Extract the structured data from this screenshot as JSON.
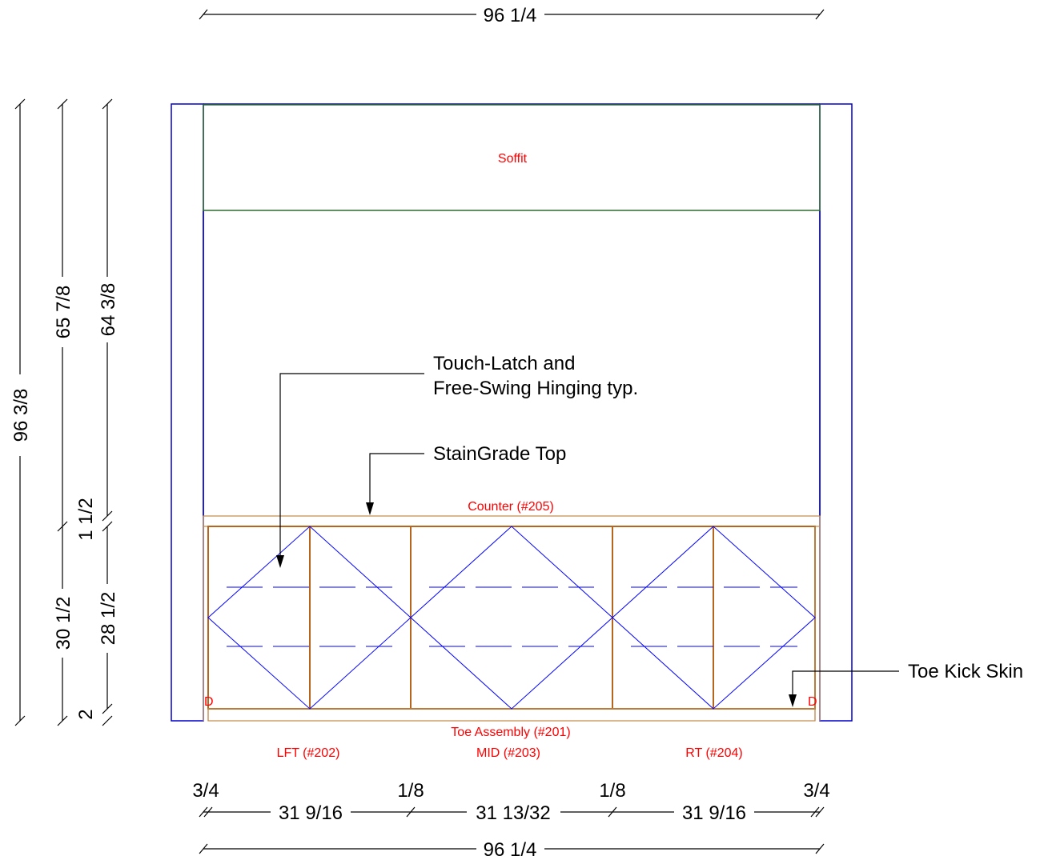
{
  "dimensions": {
    "top_overall": "96 1/4",
    "bottom_overall": "96 1/4",
    "left_overall": "96 3/8",
    "left_upper": "65 7/8",
    "left_lower": "30 1/2",
    "right_upper": "64 3/8",
    "counter_thk": "1 1/2",
    "cab_height": "28 1/2",
    "toe_height": "2",
    "end_left": "3/4",
    "gap1": "1/8",
    "gap2": "1/8",
    "end_right": "3/4",
    "cab_left_w": "31 9/16",
    "cab_mid_w": "31 13/32",
    "cab_right_w": "31 9/16"
  },
  "labels": {
    "soffit": "Soffit",
    "counter": "Counter (#205)",
    "toe_assembly": "Toe Assembly (#201)",
    "lft": "LFT (#202)",
    "mid": "MID (#203)",
    "rt": "RT (#204)",
    "d_left": "D",
    "d_right": "D"
  },
  "notes": {
    "touch_latch_line1": "Touch-Latch and",
    "touch_latch_line2": "Free-Swing Hinging typ.",
    "stain_grade": "StainGrade Top",
    "toe_kick": "Toe Kick Skin"
  },
  "colors": {
    "outline": "#0000cc",
    "soffit": "#2e6b2e",
    "casework": "#b5651d",
    "label_red": "#ff0000"
  }
}
